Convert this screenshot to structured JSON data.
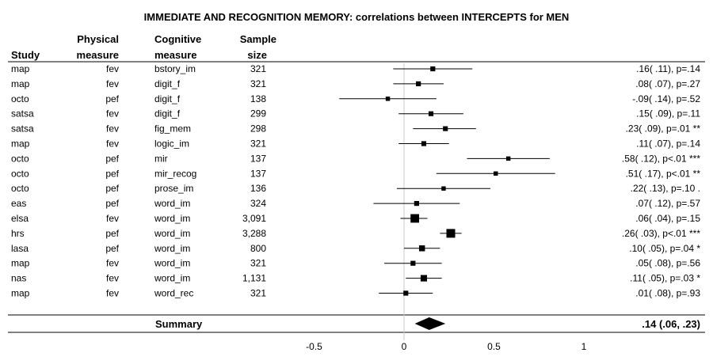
{
  "title": "IMMEDIATE AND RECOGNITION MEMORY: correlations between INTERCEPTS for MEN",
  "headers": {
    "study": "Study",
    "physical_line1": "Physical",
    "physical_line2": "measure",
    "cognitive_line1": "Cognitive",
    "cognitive_line2": "measure",
    "sample_line1": "Sample",
    "sample_line2": "size"
  },
  "chart_data": {
    "type": "forest",
    "x_ticks": [
      "-0.5",
      "0",
      "0.5",
      "1"
    ],
    "x_tick_values": [
      -0.5,
      0,
      0.5,
      1
    ],
    "xlim": [
      -0.5,
      1
    ],
    "reference_line": 0,
    "rows": [
      {
        "study": "map",
        "physical": "fev",
        "cognitive": "bstory_im",
        "n": "321",
        "estimate": 0.16,
        "ci": [
          -0.06,
          0.38
        ],
        "label": ".16( .11), p=.14"
      },
      {
        "study": "map",
        "physical": "fev",
        "cognitive": "digit_f",
        "n": "321",
        "estimate": 0.08,
        "ci": [
          -0.06,
          0.22
        ],
        "label": ".08( .07), p=.27"
      },
      {
        "study": "octo",
        "physical": "pef",
        "cognitive": "digit_f",
        "n": "138",
        "estimate": -0.09,
        "ci": [
          -0.36,
          0.18
        ],
        "label": "-.09( .14), p=.52"
      },
      {
        "study": "satsa",
        "physical": "fev",
        "cognitive": "digit_f",
        "n": "299",
        "estimate": 0.15,
        "ci": [
          -0.03,
          0.33
        ],
        "label": ".15( .09), p=.11"
      },
      {
        "study": "satsa",
        "physical": "fev",
        "cognitive": "fig_mem",
        "n": "298",
        "estimate": 0.23,
        "ci": [
          0.05,
          0.4
        ],
        "label": ".23( .09), p=.01 **"
      },
      {
        "study": "map",
        "physical": "fev",
        "cognitive": "logic_im",
        "n": "321",
        "estimate": 0.11,
        "ci": [
          -0.03,
          0.25
        ],
        "label": ".11( .07), p=.14"
      },
      {
        "study": "octo",
        "physical": "pef",
        "cognitive": "mir",
        "n": "137",
        "estimate": 0.58,
        "ci": [
          0.35,
          0.81
        ],
        "label": ".58( .12), p<.01 ***"
      },
      {
        "study": "octo",
        "physical": "pef",
        "cognitive": "mir_recog",
        "n": "137",
        "estimate": 0.51,
        "ci": [
          0.18,
          0.84
        ],
        "label": ".51( .17), p<.01 **"
      },
      {
        "study": "octo",
        "physical": "pef",
        "cognitive": "prose_im",
        "n": "136",
        "estimate": 0.22,
        "ci": [
          -0.04,
          0.48
        ],
        "label": ".22( .13), p=.10 ."
      },
      {
        "study": "eas",
        "physical": "pef",
        "cognitive": "word_im",
        "n": "324",
        "estimate": 0.07,
        "ci": [
          -0.17,
          0.31
        ],
        "label": ".07( .12), p=.57"
      },
      {
        "study": "elsa",
        "physical": "fev",
        "cognitive": "word_im",
        "n": "3,091",
        "estimate": 0.06,
        "ci": [
          -0.02,
          0.13
        ],
        "label": ".06( .04), p=.15"
      },
      {
        "study": "hrs",
        "physical": "pef",
        "cognitive": "word_im",
        "n": "3,288",
        "estimate": 0.26,
        "ci": [
          0.2,
          0.32
        ],
        "label": ".26( .03), p<.01 ***"
      },
      {
        "study": "lasa",
        "physical": "pef",
        "cognitive": "word_im",
        "n": "800",
        "estimate": 0.1,
        "ci": [
          0.0,
          0.2
        ],
        "label": ".10( .05), p=.04 *"
      },
      {
        "study": "map",
        "physical": "fev",
        "cognitive": "word_im",
        "n": "321",
        "estimate": 0.05,
        "ci": [
          -0.11,
          0.21
        ],
        "label": ".05( .08), p=.56"
      },
      {
        "study": "nas",
        "physical": "fev",
        "cognitive": "word_im",
        "n": "1,131",
        "estimate": 0.11,
        "ci": [
          0.01,
          0.21
        ],
        "label": ".11( .05), p=.03 *"
      },
      {
        "study": "map",
        "physical": "fev",
        "cognitive": "word_rec",
        "n": "321",
        "estimate": 0.01,
        "ci": [
          -0.14,
          0.16
        ],
        "label": ".01( .08), p=.93"
      }
    ],
    "summary": {
      "label_left": "Summary",
      "estimate": 0.14,
      "ci": [
        0.06,
        0.23
      ],
      "label": ".14 (.06, .23)"
    }
  }
}
